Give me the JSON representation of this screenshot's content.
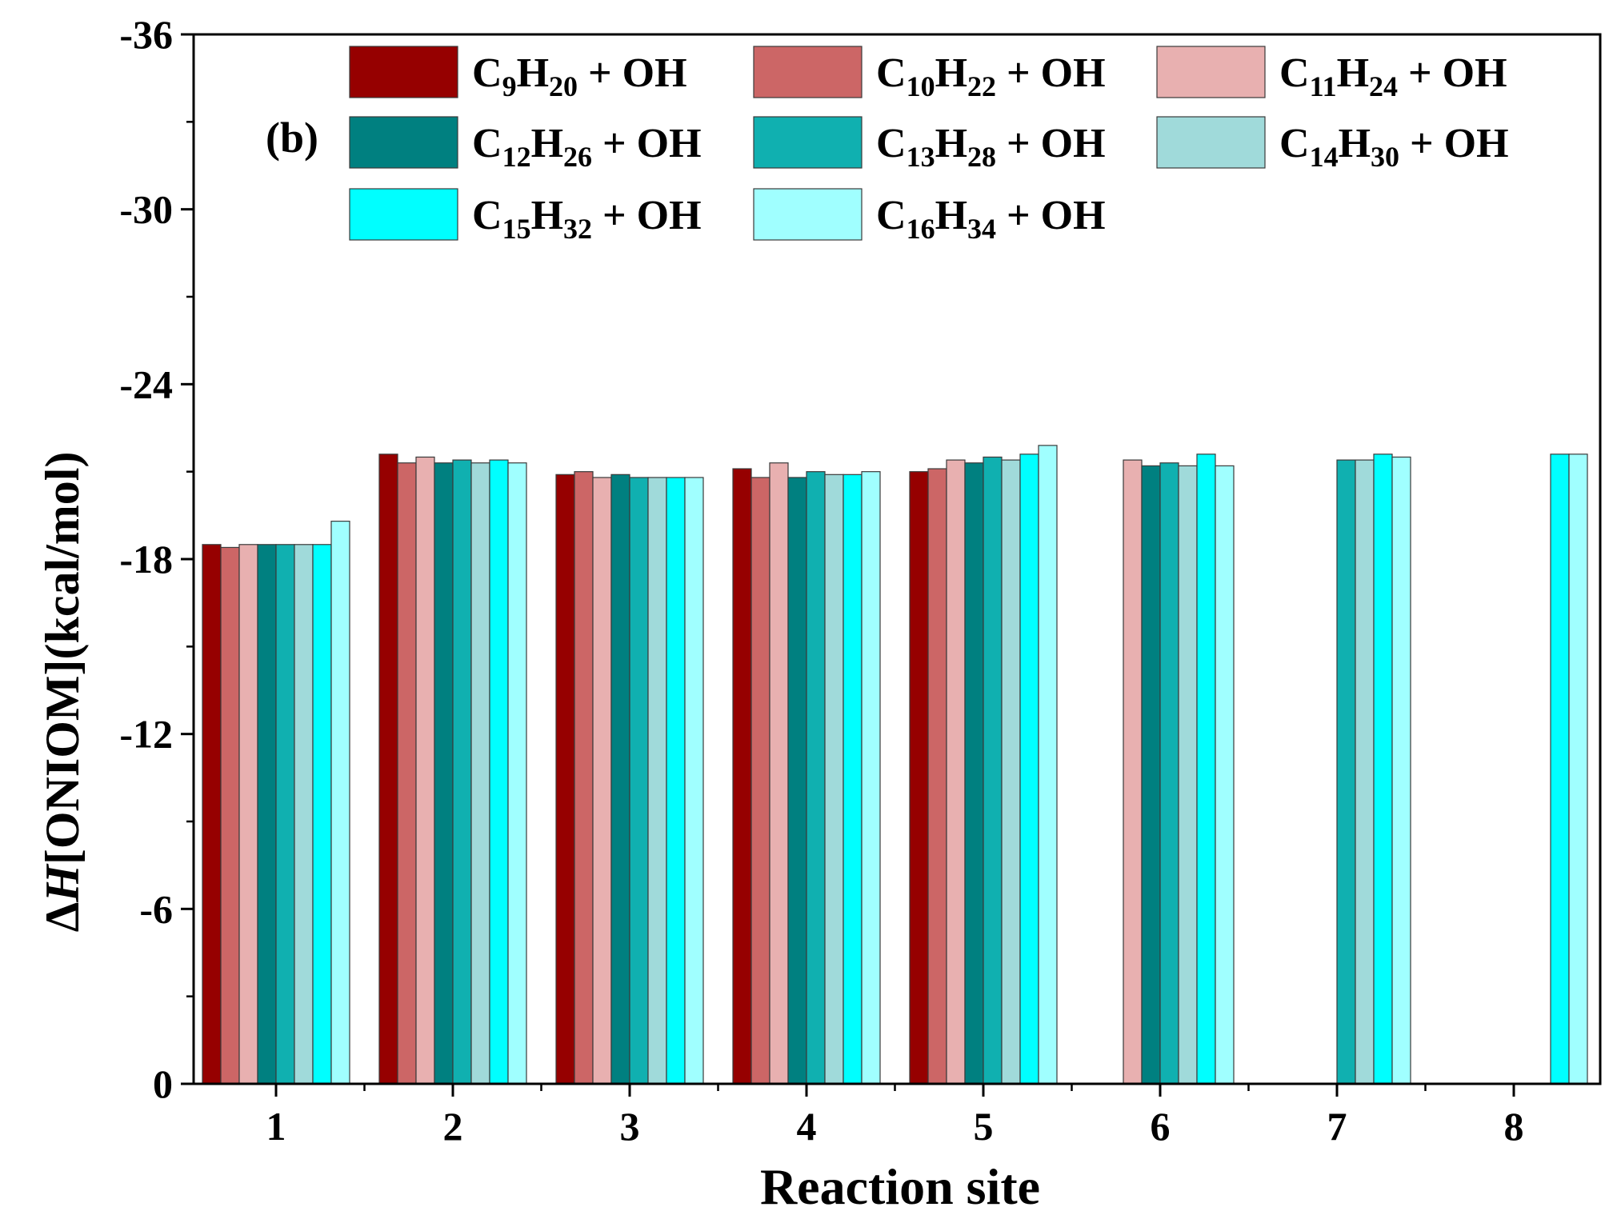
{
  "chart_data": {
    "type": "bar",
    "panel_label": "(b)",
    "title": "",
    "xlabel": "Reaction site",
    "ylabel_delta": "Δ",
    "ylabel_italic": "H",
    "ylabel_rest": "[ONIOM](kcal/mol)",
    "ylim": [
      0,
      -36
    ],
    "yticks": [
      "0",
      "-6",
      "-12",
      "-18",
      "-24",
      "-30",
      "-36"
    ],
    "ytick_values": [
      0,
      -6,
      -12,
      -18,
      -24,
      -30,
      -36
    ],
    "categories": [
      "1",
      "2",
      "3",
      "4",
      "5",
      "6",
      "7",
      "8"
    ],
    "legend_position": "top",
    "series": [
      {
        "name": "C9H20 + OH",
        "c_sub": "9",
        "h_sub": "20",
        "suffix": " + OH",
        "color": "#960000",
        "values": [
          -18.5,
          -21.6,
          -20.9,
          -21.1,
          -21.0,
          null,
          null,
          null
        ]
      },
      {
        "name": "C10H22 + OH",
        "c_sub": "10",
        "h_sub": "22",
        "suffix": " + OH",
        "color": "#cc6666",
        "values": [
          -18.4,
          -21.3,
          -21.0,
          -20.8,
          -21.1,
          null,
          null,
          null
        ]
      },
      {
        "name": "C11H24 + OH",
        "c_sub": "11",
        "h_sub": "24",
        "suffix": " + OH",
        "color": "#e8b0b0",
        "values": [
          -18.5,
          -21.5,
          -20.8,
          -21.3,
          -21.4,
          -21.4,
          null,
          null
        ]
      },
      {
        "name": "C12H26 + OH",
        "c_sub": "12",
        "h_sub": "26",
        "suffix": " + OH",
        "color": "#008080",
        "values": [
          -18.5,
          -21.3,
          -20.9,
          -20.8,
          -21.3,
          -21.2,
          null,
          null
        ]
      },
      {
        "name": "C13H28 + OH",
        "c_sub": "13",
        "h_sub": "28",
        "suffix": " + OH",
        "color": "#10b0b0",
        "values": [
          -18.5,
          -21.4,
          -20.8,
          -21.0,
          -21.5,
          -21.3,
          -21.4,
          null
        ]
      },
      {
        "name": "C14H30 + OH",
        "c_sub": "14",
        "h_sub": "30",
        "suffix": " + OH",
        "color": "#a0dada",
        "values": [
          -18.5,
          -21.3,
          -20.8,
          -20.9,
          -21.4,
          -21.2,
          -21.4,
          null
        ]
      },
      {
        "name": "C15H32 + OH",
        "c_sub": "15",
        "h_sub": "32",
        "suffix": " + OH",
        "color": "#00ffff",
        "values": [
          -18.5,
          -21.4,
          -20.8,
          -20.9,
          -21.6,
          -21.6,
          -21.6,
          -21.6
        ]
      },
      {
        "name": "C16H34 + OH",
        "c_sub": "16",
        "h_sub": "34",
        "suffix": " + OH",
        "color": "#a0ffff",
        "values": [
          -19.3,
          -21.3,
          -20.8,
          -21.0,
          -21.9,
          -21.2,
          -21.5,
          -21.6
        ]
      }
    ]
  }
}
